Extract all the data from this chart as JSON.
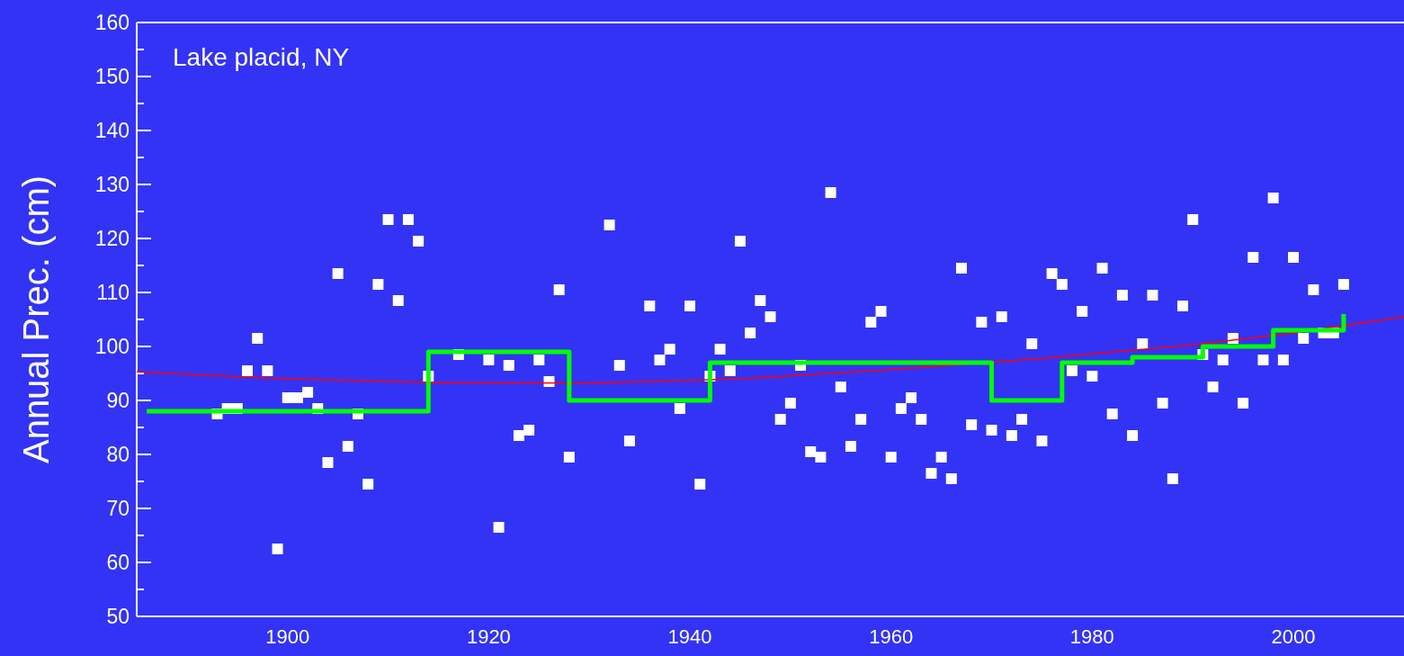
{
  "chart_data": {
    "type": "scatter",
    "title": "Lake placid, NY",
    "ylabel": "Annual Prec. (cm)",
    "xlim": [
      1885,
      2011
    ],
    "ylim": [
      50,
      160
    ],
    "xticks": [
      1900,
      1920,
      1940,
      1960,
      1980,
      2000
    ],
    "yticks": [
      50,
      {
        "value": 55,
        "label": null
      },
      60,
      {
        "value": 65,
        "label": null
      },
      70,
      {
        "value": 75,
        "label": null
      },
      80,
      {
        "value": 85,
        "label": null
      },
      90,
      {
        "value": 95,
        "label": null
      },
      100,
      {
        "value": 105,
        "label": null
      },
      110,
      {
        "value": 115,
        "label": null
      },
      120,
      {
        "value": 125,
        "label": null
      },
      130,
      {
        "value": 135,
        "label": null
      },
      140,
      {
        "value": 145,
        "label": null
      },
      150,
      {
        "value": 155,
        "label": null
      },
      160
    ],
    "grid": false,
    "series": [
      {
        "marker": "square",
        "color": "#ffffff",
        "x": [
          1893,
          1894,
          1895,
          1896,
          1897,
          1898,
          1899,
          1900,
          1901,
          1902,
          1903,
          1904,
          1905,
          1906,
          1907,
          1908,
          1909,
          1910,
          1911,
          1912,
          1913,
          1914,
          1917,
          1920,
          1921,
          1922,
          1923,
          1924,
          1925,
          1926,
          1927,
          1928,
          1932,
          1933,
          1934,
          1936,
          1937,
          1938,
          1939,
          1940,
          1941,
          1942,
          1943,
          1944,
          1945,
          1946,
          1947,
          1948,
          1949,
          1950,
          1951,
          1952,
          1953,
          1954,
          1955,
          1956,
          1957,
          1958,
          1959,
          1960,
          1961,
          1962,
          1963,
          1964,
          1965,
          1966,
          1967,
          1968,
          1969,
          1970,
          1971,
          1972,
          1973,
          1974,
          1975,
          1976,
          1977,
          1978,
          1979,
          1980,
          1981,
          1982,
          1983,
          1984,
          1985,
          1986,
          1987,
          1988,
          1989,
          1990,
          1991,
          1992,
          1993,
          1994,
          1995,
          1996,
          1997,
          1998,
          1999,
          2000,
          2001,
          2002,
          2003,
          2004,
          2005
        ],
        "values": [
          87.5,
          88.5,
          88.5,
          95.5,
          101.5,
          95.5,
          62.5,
          90.5,
          90.5,
          91.5,
          88.5,
          78.5,
          113.5,
          81.5,
          87.5,
          74.5,
          111.5,
          123.5,
          108.5,
          123.5,
          119.5,
          94.5,
          98.5,
          97.5,
          66.5,
          96.5,
          83.5,
          84.5,
          97.5,
          93.5,
          110.5,
          79.5,
          122.5,
          96.5,
          82.5,
          107.5,
          97.5,
          99.5,
          88.5,
          107.5,
          74.5,
          94.5,
          99.5,
          95.5,
          119.5,
          102.5,
          108.5,
          105.5,
          86.5,
          89.5,
          96.5,
          80.5,
          79.5,
          128.5,
          92.5,
          81.5,
          86.5,
          104.5,
          106.5,
          79.5,
          88.5,
          90.5,
          86.5,
          76.5,
          79.5,
          75.5,
          114.5,
          85.5,
          104.5,
          84.5,
          105.5,
          83.5,
          86.5,
          100.5,
          82.5,
          113.5,
          111.5,
          95.5,
          106.5,
          94.5,
          114.5,
          87.5,
          109.5,
          83.5,
          100.5,
          109.5,
          89.5,
          75.5,
          107.5,
          123.5,
          98.5,
          92.5,
          97.5,
          101.5,
          89.5,
          116.5,
          97.5,
          127.5,
          97.5,
          116.5,
          101.5,
          110.5,
          102.5,
          102.5,
          111.5
        ]
      },
      {
        "type": "line",
        "color": "#ff0000",
        "x": [
          1885,
          1900,
          1915,
          1930,
          1945,
          1960,
          1975,
          1990,
          2000,
          2011
        ],
        "values": [
          95.3,
          94,
          93.3,
          93.2,
          94,
          95.7,
          97.8,
          100.3,
          102.5,
          105.5
        ]
      },
      {
        "type": "step",
        "color": "#00ff00",
        "x": [
          1886,
          1914,
          1928,
          1942,
          1970,
          1977,
          1984,
          1991,
          1998,
          2005,
          2005
        ],
        "values": [
          88,
          99,
          90,
          97,
          90,
          97,
          98,
          100,
          103,
          103,
          106
        ]
      }
    ]
  }
}
